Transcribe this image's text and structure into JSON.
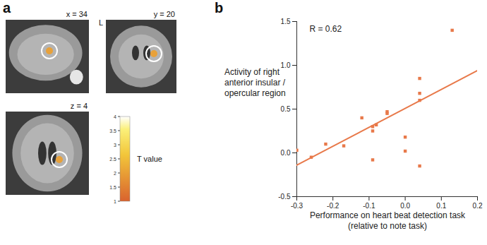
{
  "panel_a": {
    "label": "a",
    "slices": [
      {
        "label": "x = 34"
      },
      {
        "label": "y = 20",
        "side_label": "L"
      },
      {
        "label": "z = 4"
      }
    ],
    "colorbar": {
      "label": "T value",
      "range": [
        1,
        4
      ],
      "ticks": [
        1,
        1.5,
        2,
        2.5,
        3,
        3.5,
        4
      ]
    }
  },
  "chart_data": {
    "panel_label": "b",
    "type": "scatter",
    "annotation": "R = 0.62",
    "xlabel": "Performance on heart beat detection task (relative to note task)",
    "ylabel": "Activity of right anterior insular / opercular region",
    "x": [
      -0.3,
      -0.26,
      -0.22,
      -0.17,
      -0.12,
      -0.09,
      -0.09,
      -0.08,
      -0.09,
      -0.05,
      -0.05,
      0.0,
      0.0,
      0.04,
      0.04,
      0.04,
      0.04,
      0.13
    ],
    "values": [
      0.03,
      -0.05,
      0.1,
      0.08,
      0.4,
      0.25,
      0.3,
      0.32,
      -0.08,
      0.45,
      0.47,
      0.18,
      0.02,
      0.85,
      0.68,
      0.6,
      -0.15,
      1.4
    ],
    "fit_line": {
      "x": [
        -0.3,
        0.2
      ],
      "y": [
        -0.14,
        0.94
      ]
    },
    "color": "#e8794a",
    "marker": "square",
    "xlim": [
      -0.3,
      0.2
    ],
    "xticks": [
      -0.3,
      -0.2,
      -0.1,
      {
        "value": 0,
        "label": "0.0"
      },
      0.1,
      0.2
    ],
    "ylim": [
      -0.5,
      1.5
    ],
    "yticks": [
      -0.5,
      {
        "value": 0,
        "label": "0.0"
      },
      0.5,
      {
        "value": 1,
        "label": "1.0"
      },
      1.5
    ],
    "grid": false
  }
}
